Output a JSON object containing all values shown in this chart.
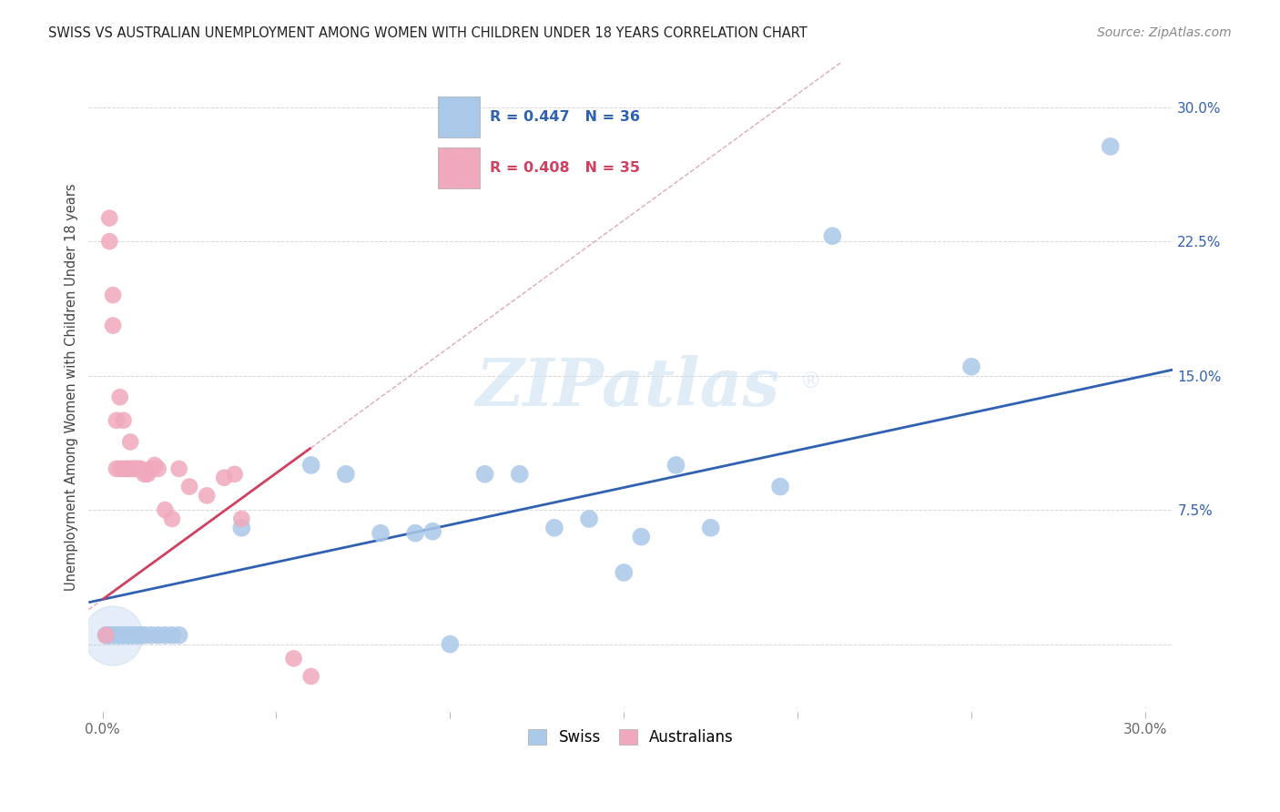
{
  "title": "SWISS VS AUSTRALIAN UNEMPLOYMENT AMONG WOMEN WITH CHILDREN UNDER 18 YEARS CORRELATION CHART",
  "source": "Source: ZipAtlas.com",
  "ylabel": "Unemployment Among Women with Children Under 18 years",
  "xlim": [
    -0.004,
    0.308
  ],
  "ylim": [
    -0.038,
    0.325
  ],
  "swiss_R": 0.447,
  "swiss_N": 36,
  "aus_R": 0.408,
  "aus_N": 35,
  "swiss_dot_color": "#aac8e8",
  "aus_dot_color": "#f0a8bc",
  "swiss_line_color": "#3060b0",
  "aus_line_color": "#d04060",
  "aus_dash_color": "#d8a0b8",
  "watermark_color": "#c8ddf0",
  "swiss_x": [
    0.001,
    0.002,
    0.003,
    0.004,
    0.005,
    0.006,
    0.007,
    0.008,
    0.009,
    0.01,
    0.011,
    0.012,
    0.014,
    0.016,
    0.018,
    0.02,
    0.022,
    0.04,
    0.06,
    0.07,
    0.08,
    0.09,
    0.095,
    0.1,
    0.11,
    0.12,
    0.13,
    0.14,
    0.15,
    0.155,
    0.165,
    0.175,
    0.195,
    0.21,
    0.25,
    0.29
  ],
  "swiss_y": [
    0.005,
    0.005,
    0.005,
    0.005,
    0.005,
    0.005,
    0.005,
    0.005,
    0.005,
    0.005,
    0.005,
    0.005,
    0.005,
    0.005,
    0.005,
    0.005,
    0.005,
    0.065,
    0.1,
    0.095,
    0.062,
    0.062,
    0.063,
    0.0,
    0.095,
    0.095,
    0.065,
    0.07,
    0.04,
    0.06,
    0.1,
    0.065,
    0.088,
    0.228,
    0.155,
    0.278
  ],
  "aus_x": [
    0.001,
    0.002,
    0.002,
    0.003,
    0.003,
    0.004,
    0.004,
    0.005,
    0.005,
    0.006,
    0.006,
    0.007,
    0.007,
    0.008,
    0.008,
    0.009,
    0.009,
    0.01,
    0.01,
    0.011,
    0.012,
    0.013,
    0.014,
    0.015,
    0.016,
    0.018,
    0.02,
    0.022,
    0.025,
    0.03,
    0.035,
    0.038,
    0.04,
    0.055,
    0.06
  ],
  "aus_y": [
    0.005,
    0.225,
    0.238,
    0.178,
    0.195,
    0.125,
    0.098,
    0.098,
    0.138,
    0.098,
    0.125,
    0.098,
    0.098,
    0.098,
    0.113,
    0.098,
    0.098,
    0.098,
    0.098,
    0.098,
    0.095,
    0.095,
    0.098,
    0.1,
    0.098,
    0.075,
    0.07,
    0.098,
    0.088,
    0.083,
    0.093,
    0.095,
    0.07,
    -0.008,
    -0.018
  ]
}
